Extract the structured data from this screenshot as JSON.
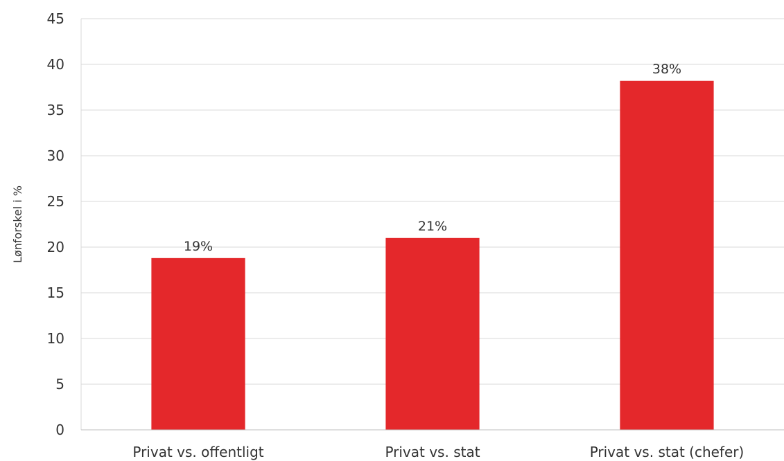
{
  "chart_data": {
    "type": "bar",
    "categories": [
      "Privat vs. offentligt",
      "Privat vs. stat",
      "Privat vs. stat (chefer)"
    ],
    "values": [
      18.8,
      21.0,
      38.2
    ],
    "data_labels": [
      "19%",
      "21%",
      "38%"
    ],
    "ylabel": "Lønforskel i %",
    "ylim": [
      0,
      45
    ],
    "yticks": [
      0,
      5,
      10,
      15,
      20,
      25,
      30,
      35,
      40,
      45
    ],
    "grid": true,
    "legend": "none",
    "bar_color": "#e4282b",
    "grid_color": "#d9d9d9"
  }
}
